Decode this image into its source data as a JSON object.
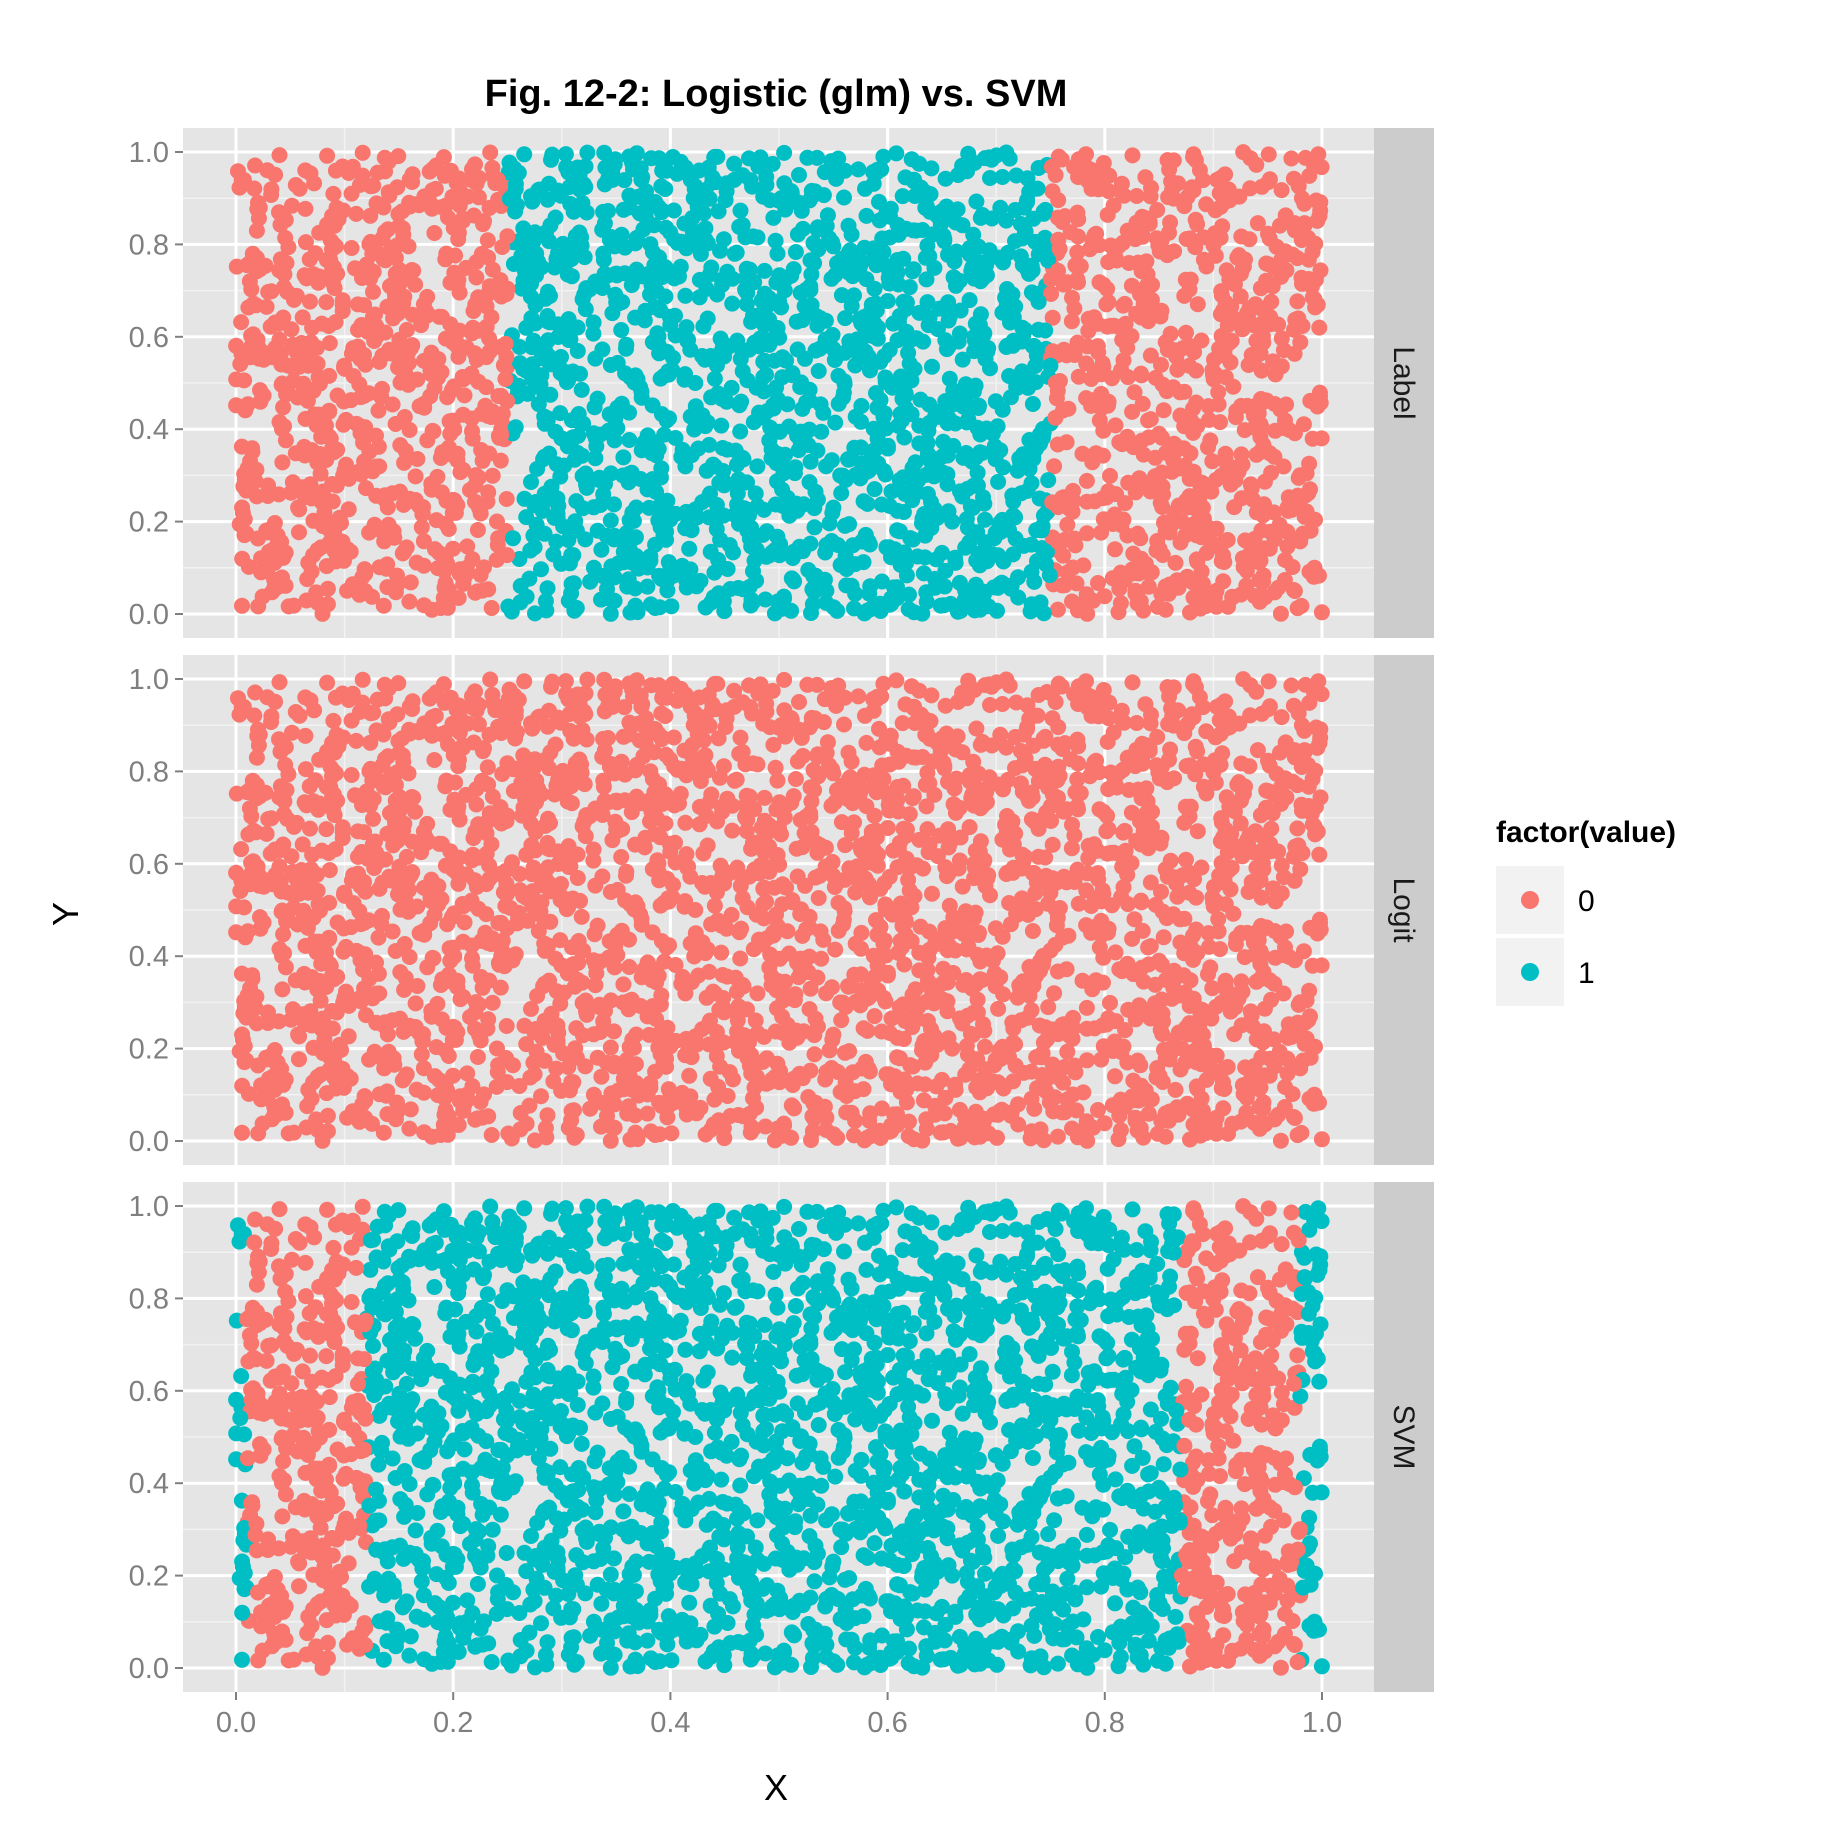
{
  "chart_data": {
    "type": "scatter",
    "title": "Fig. 12-2: Logistic (glm) vs. SVM",
    "xlabel": "X",
    "ylabel": "Y",
    "xlim": [
      0,
      1
    ],
    "ylim": [
      0,
      1
    ],
    "x_ticks": [
      "0.0",
      "0.2",
      "0.4",
      "0.6",
      "0.8",
      "1.0"
    ],
    "y_ticks": [
      "0.0",
      "0.2",
      "0.4",
      "0.6",
      "0.8",
      "1.0"
    ],
    "grid": true,
    "legend": {
      "title": "factor(value)",
      "position": "right",
      "entries": [
        {
          "label": "0",
          "color": "#F8766D"
        },
        {
          "label": "1",
          "color": "#00BFC4"
        }
      ]
    },
    "facets": [
      {
        "label": "Label",
        "class_regions": [
          {
            "x_range": [
              0.0,
              0.25
            ],
            "value": "0"
          },
          {
            "x_range": [
              0.25,
              0.75
            ],
            "value": "1"
          },
          {
            "x_range": [
              0.75,
              1.0
            ],
            "value": "0"
          }
        ]
      },
      {
        "label": "Logit",
        "class_regions": [
          {
            "x_range": [
              0.0,
              1.0
            ],
            "value": "0"
          }
        ]
      },
      {
        "label": "SVM",
        "class_regions": [
          {
            "x_range": [
              0.0,
              0.01
            ],
            "value": "1"
          },
          {
            "x_range": [
              0.01,
              0.12
            ],
            "value": "0"
          },
          {
            "x_range": [
              0.12,
              0.87
            ],
            "value": "1"
          },
          {
            "x_range": [
              0.87,
              0.98
            ],
            "value": "0"
          },
          {
            "x_range": [
              0.98,
              1.0
            ],
            "value": "1"
          }
        ]
      }
    ],
    "sample_points": {
      "x": [
        0.02,
        0.05,
        0.09,
        0.13,
        0.18,
        0.22,
        0.27,
        0.31,
        0.36,
        0.4,
        0.44,
        0.48,
        0.53,
        0.57,
        0.61,
        0.66,
        0.7,
        0.74,
        0.78,
        0.83,
        0.87,
        0.91,
        0.95,
        0.99
      ],
      "y": [
        0.51,
        0.12,
        0.87,
        0.34,
        0.66,
        0.05,
        0.93,
        0.42,
        0.21,
        0.78,
        0.57,
        0.09,
        0.69,
        0.31,
        0.96,
        0.46,
        0.15,
        0.83,
        0.62,
        0.27,
        0.74,
        0.38,
        0.01,
        0.55
      ]
    }
  }
}
